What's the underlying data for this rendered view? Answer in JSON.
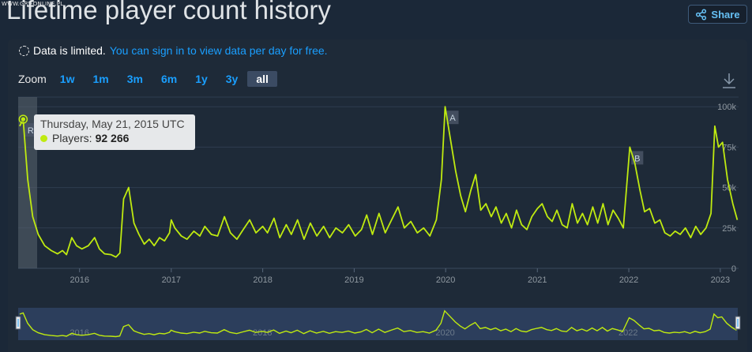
{
  "watermark": "WWW.GRY-ONLINE.PL",
  "title": "Lifetime player count history",
  "share_label": "Share",
  "notice": {
    "limited": "Data is limited.",
    "link": "You can sign in to view data per day for free."
  },
  "zoom": {
    "label": "Zoom",
    "options": [
      "1w",
      "1m",
      "3m",
      "6m",
      "1y",
      "3y",
      "all"
    ],
    "active": "all"
  },
  "icons": {
    "share": "share-icon",
    "download": "download-icon",
    "notice": "dashed-circle-icon"
  },
  "colors": {
    "series": "#bfea10",
    "background": "#1b2838",
    "link": "#1a9fff"
  },
  "tooltip": {
    "date": "Thursday, May 21, 2015 UTC",
    "series_label": "Players:",
    "value": "92 266"
  },
  "chart_data": {
    "type": "line",
    "title": "Lifetime player count history",
    "xlabel": "",
    "ylabel": "",
    "ylim": [
      0,
      105000
    ],
    "xlim": [
      "2015-05-01",
      "2023-03-15"
    ],
    "y_ticks": [
      0,
      25000,
      50000,
      75000,
      100000
    ],
    "y_tick_labels": [
      "0",
      "25k",
      "50k",
      "75k",
      "100k"
    ],
    "x_tick_labels": [
      "2016",
      "2017",
      "2018",
      "2019",
      "2020",
      "2021",
      "2022",
      "2023"
    ],
    "x_tick_dates": [
      "2016-01-01",
      "2017-01-01",
      "2018-01-01",
      "2019-01-01",
      "2020-01-01",
      "2021-01-01",
      "2022-01-01",
      "2023-01-01"
    ],
    "navigator_labels": [
      "2016",
      "2018",
      "2020",
      "2022"
    ],
    "navigator_dates": [
      "2016-01-01",
      "2018-01-01",
      "2020-01-01",
      "2022-01-01"
    ],
    "grid": true,
    "highlight": {
      "date": "2015-05-21",
      "value": 92266
    },
    "flags": [
      {
        "label": "R",
        "date": "2015-05-21"
      },
      {
        "label": "A",
        "date": "2019-12-30"
      },
      {
        "label": "B",
        "date": "2022-01-05"
      }
    ],
    "series": [
      {
        "points": [
          [
            "2015-05-07",
            88000
          ],
          [
            "2015-05-21",
            92266
          ],
          [
            "2015-06-08",
            55000
          ],
          [
            "2015-06-28",
            32000
          ],
          [
            "2015-07-20",
            21000
          ],
          [
            "2015-08-15",
            14000
          ],
          [
            "2015-09-10",
            11000
          ],
          [
            "2015-10-05",
            9000
          ],
          [
            "2015-10-25",
            11000
          ],
          [
            "2015-11-10",
            8500
          ],
          [
            "2015-12-01",
            19000
          ],
          [
            "2015-12-20",
            14000
          ],
          [
            "2016-01-10",
            12000
          ],
          [
            "2016-02-05",
            14000
          ],
          [
            "2016-03-01",
            19000
          ],
          [
            "2016-03-20",
            12000
          ],
          [
            "2016-04-10",
            9000
          ],
          [
            "2016-05-05",
            8500
          ],
          [
            "2016-05-25",
            7000
          ],
          [
            "2016-06-10",
            9500
          ],
          [
            "2016-06-25",
            43000
          ],
          [
            "2016-07-15",
            50000
          ],
          [
            "2016-08-05",
            28000
          ],
          [
            "2016-08-25",
            21000
          ],
          [
            "2016-09-15",
            15000
          ],
          [
            "2016-10-05",
            18000
          ],
          [
            "2016-10-25",
            14000
          ],
          [
            "2016-11-15",
            19000
          ],
          [
            "2016-12-05",
            17000
          ],
          [
            "2016-12-25",
            22000
          ],
          [
            "2017-01-01",
            30000
          ],
          [
            "2017-01-15",
            25000
          ],
          [
            "2017-02-10",
            20000
          ],
          [
            "2017-03-05",
            18000
          ],
          [
            "2017-04-01",
            23000
          ],
          [
            "2017-04-25",
            20000
          ],
          [
            "2017-05-15",
            26000
          ],
          [
            "2017-06-10",
            21000
          ],
          [
            "2017-07-05",
            20000
          ],
          [
            "2017-08-01",
            32000
          ],
          [
            "2017-08-25",
            22000
          ],
          [
            "2017-09-20",
            18000
          ],
          [
            "2017-10-15",
            24000
          ],
          [
            "2017-11-10",
            30000
          ],
          [
            "2017-12-05",
            22000
          ],
          [
            "2018-01-01",
            26000
          ],
          [
            "2018-01-20",
            22000
          ],
          [
            "2018-02-15",
            31000
          ],
          [
            "2018-03-10",
            19000
          ],
          [
            "2018-04-05",
            27000
          ],
          [
            "2018-04-25",
            21000
          ],
          [
            "2018-05-20",
            30000
          ],
          [
            "2018-06-15",
            18000
          ],
          [
            "2018-07-10",
            28000
          ],
          [
            "2018-08-05",
            20000
          ],
          [
            "2018-09-01",
            26000
          ],
          [
            "2018-09-25",
            19000
          ],
          [
            "2018-10-20",
            25000
          ],
          [
            "2018-11-15",
            22000
          ],
          [
            "2018-12-10",
            27000
          ],
          [
            "2019-01-05",
            20000
          ],
          [
            "2019-01-30",
            24000
          ],
          [
            "2019-02-20",
            33000
          ],
          [
            "2019-03-15",
            21000
          ],
          [
            "2019-04-10",
            34000
          ],
          [
            "2019-05-05",
            22000
          ],
          [
            "2019-05-30",
            30000
          ],
          [
            "2019-06-25",
            38000
          ],
          [
            "2019-07-20",
            25000
          ],
          [
            "2019-08-15",
            29000
          ],
          [
            "2019-09-10",
            22000
          ],
          [
            "2019-10-05",
            25000
          ],
          [
            "2019-10-30",
            20000
          ],
          [
            "2019-11-25",
            30000
          ],
          [
            "2019-12-15",
            55000
          ],
          [
            "2019-12-30",
            100000
          ],
          [
            "2020-01-20",
            80000
          ],
          [
            "2020-02-10",
            60000
          ],
          [
            "2020-03-01",
            45000
          ],
          [
            "2020-03-20",
            35000
          ],
          [
            "2020-04-10",
            48000
          ],
          [
            "2020-04-30",
            58000
          ],
          [
            "2020-05-20",
            36000
          ],
          [
            "2020-06-10",
            40000
          ],
          [
            "2020-07-01",
            32000
          ],
          [
            "2020-07-20",
            38000
          ],
          [
            "2020-08-10",
            28000
          ],
          [
            "2020-08-30",
            34000
          ],
          [
            "2020-09-20",
            25000
          ],
          [
            "2020-10-10",
            36000
          ],
          [
            "2020-10-30",
            27000
          ],
          [
            "2020-11-20",
            24000
          ],
          [
            "2020-12-10",
            32000
          ],
          [
            "2021-01-01",
            37000
          ],
          [
            "2021-01-20",
            40000
          ],
          [
            "2021-02-10",
            32000
          ],
          [
            "2021-03-01",
            29000
          ],
          [
            "2021-03-20",
            36000
          ],
          [
            "2021-04-10",
            27000
          ],
          [
            "2021-04-30",
            25000
          ],
          [
            "2021-05-20",
            40000
          ],
          [
            "2021-06-10",
            28000
          ],
          [
            "2021-06-30",
            34000
          ],
          [
            "2021-07-20",
            27000
          ],
          [
            "2021-08-10",
            38000
          ],
          [
            "2021-08-30",
            28000
          ],
          [
            "2021-09-20",
            40000
          ],
          [
            "2021-10-10",
            27000
          ],
          [
            "2021-10-30",
            36000
          ],
          [
            "2021-11-20",
            31000
          ],
          [
            "2021-12-10",
            25000
          ],
          [
            "2022-01-05",
            75000
          ],
          [
            "2022-01-25",
            65000
          ],
          [
            "2022-02-15",
            48000
          ],
          [
            "2022-03-05",
            35000
          ],
          [
            "2022-03-25",
            37000
          ],
          [
            "2022-04-15",
            28000
          ],
          [
            "2022-05-05",
            30000
          ],
          [
            "2022-05-25",
            22000
          ],
          [
            "2022-06-15",
            20000
          ],
          [
            "2022-07-05",
            23000
          ],
          [
            "2022-07-25",
            21000
          ],
          [
            "2022-08-15",
            25000
          ],
          [
            "2022-09-05",
            19000
          ],
          [
            "2022-09-25",
            26000
          ],
          [
            "2022-10-15",
            21000
          ],
          [
            "2022-11-05",
            25000
          ],
          [
            "2022-11-25",
            34000
          ],
          [
            "2022-12-10",
            88000
          ],
          [
            "2022-12-25",
            75000
          ],
          [
            "2023-01-10",
            78000
          ],
          [
            "2023-01-30",
            55000
          ],
          [
            "2023-02-20",
            40000
          ],
          [
            "2023-03-10",
            30000
          ]
        ]
      }
    ]
  }
}
